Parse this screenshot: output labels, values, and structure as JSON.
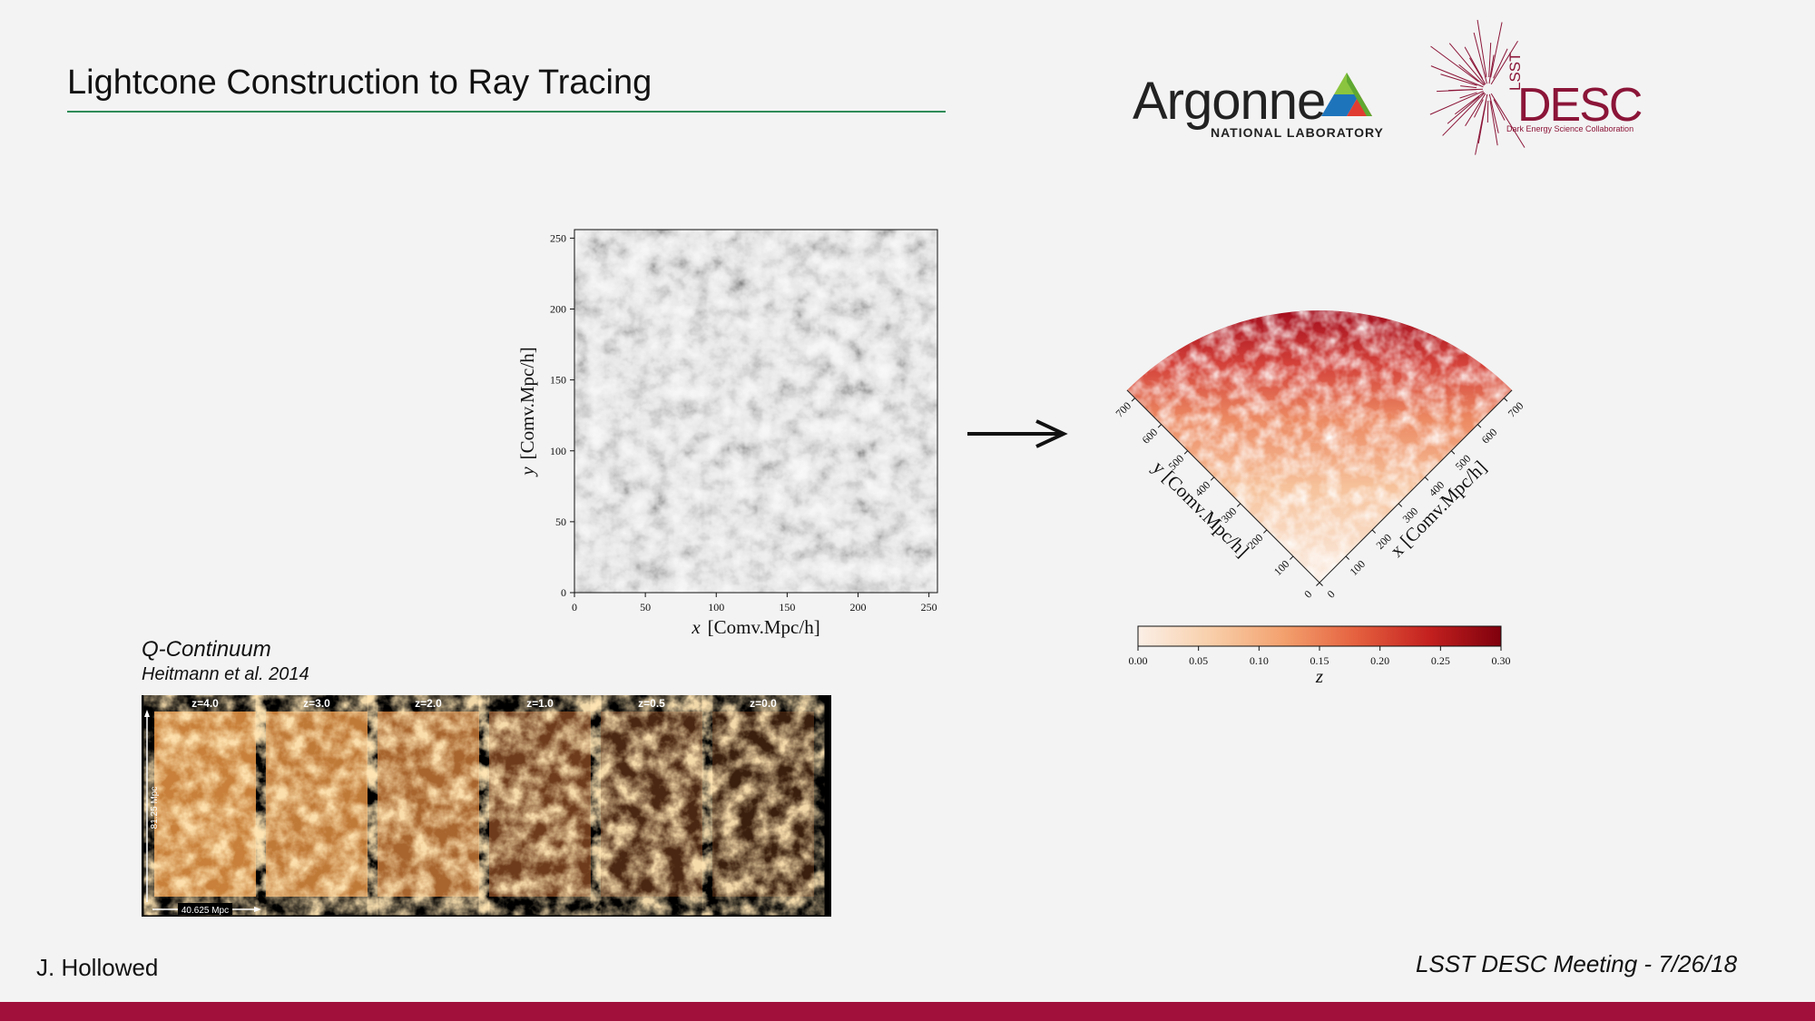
{
  "slide": {
    "title": "Lightcone Construction to Ray Tracing",
    "footer_left": "J. Hollowed",
    "footer_right": "LSST DESC Meeting - 7/26/18"
  },
  "logos": {
    "argonne_word": "Argonne",
    "argonne_sub": "NATIONAL LABORATORY",
    "desc_lsst": "LSST",
    "desc_word": "DESC",
    "desc_sub": "Dark Energy Science Collaboration",
    "argonne_colors": [
      "#8bc53f",
      "#e03c31",
      "#1e74bb"
    ],
    "desc_color": "#8b1538"
  },
  "box_plot": {
    "x_ticks": [
      "0",
      "50",
      "100",
      "150",
      "200",
      "250"
    ],
    "y_ticks": [
      "0",
      "50",
      "100",
      "150",
      "200",
      "250"
    ],
    "xlabel_var": "x",
    "xlabel_unit": "[Comv.Mpc/h]",
    "ylabel_var": "y",
    "ylabel_unit": "[Comv.Mpc/h]"
  },
  "lightcone_plot": {
    "left_ticks": [
      "0",
      "100",
      "200",
      "300",
      "400",
      "500",
      "600",
      "700"
    ],
    "right_ticks": [
      "0",
      "100",
      "200",
      "300",
      "400",
      "500",
      "600",
      "700"
    ],
    "left_label": "y [Comv.Mpc/h]",
    "right_label": "x [Comv.Mpc/h]",
    "colorbar_ticks": [
      "0.00",
      "0.05",
      "0.10",
      "0.15",
      "0.20",
      "0.25",
      "0.30"
    ],
    "colorbar_label": "z",
    "colormap": [
      "#fbefe6",
      "#f8c9a4",
      "#f29b6a",
      "#e35a3c",
      "#c01a1f",
      "#8a0010"
    ]
  },
  "q_continuum": {
    "name": "Q-Continuum",
    "ref": "Heitmann et al. 2014",
    "panel_labels": [
      "z=4.0",
      "z=3.0",
      "z=2.0",
      "z=1.0",
      "z=0.5",
      "z=0.0"
    ],
    "height_label": "81.25 Mpc",
    "width_label": "40.625 Mpc"
  }
}
